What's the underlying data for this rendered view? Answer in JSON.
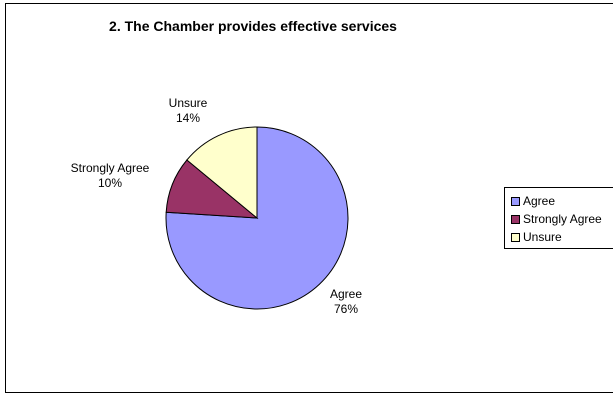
{
  "chart_data": {
    "type": "pie",
    "title": "2. The Chamber provides effective services",
    "slices": [
      {
        "label": "Agree",
        "value": 76,
        "value_label": "76%",
        "color": "#9999ff"
      },
      {
        "label": "Strongly Agree",
        "value": 10,
        "value_label": "10%",
        "color": "#993366"
      },
      {
        "label": "Unsure",
        "value": 14,
        "value_label": "14%",
        "color": "#ffffcc"
      }
    ],
    "legend": {
      "placement": "right",
      "entries": [
        "Agree",
        "Strongly Agree",
        "Unsure"
      ]
    }
  }
}
